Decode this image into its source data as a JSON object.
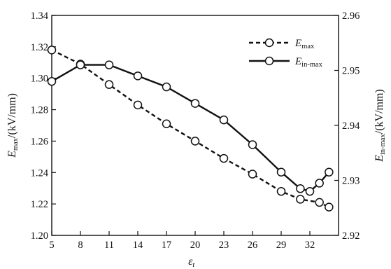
{
  "chart_data": {
    "type": "line",
    "x_axis": {
      "symbol": "ε",
      "subscript": "r",
      "range": [
        5,
        35
      ],
      "ticks": [
        5,
        8,
        11,
        14,
        17,
        20,
        23,
        26,
        29,
        32
      ],
      "tick_labels": [
        "5",
        "8",
        "11",
        "14",
        "17",
        "20",
        "23",
        "26",
        "29",
        "32"
      ]
    },
    "y_axis_left": {
      "symbol": "E",
      "subscript": "max",
      "unit": "/(kV/mm)",
      "range": [
        1.2,
        1.34
      ],
      "ticks": [
        1.2,
        1.22,
        1.24,
        1.26,
        1.28,
        1.3,
        1.32,
        1.34
      ],
      "tick_labels": [
        "1.20",
        "1.22",
        "1.24",
        "1.26",
        "1.28",
        "1.30",
        "1.32",
        "1.34"
      ]
    },
    "y_axis_right": {
      "symbol": "E",
      "subscript": "in-max",
      "unit": "/(kV/mm)",
      "range": [
        2.92,
        2.96
      ],
      "ticks": [
        2.92,
        2.93,
        2.94,
        2.95,
        2.96
      ],
      "tick_labels": [
        "2.92",
        "2.93",
        "2.94",
        "2.95",
        "2.96"
      ]
    },
    "series": [
      {
        "name": "E",
        "name_subscript": "max",
        "axis": "left",
        "line_style": "dashed",
        "marker": "open-circle",
        "x": [
          5,
          8,
          11,
          14,
          17,
          20,
          23,
          26,
          29,
          31,
          33,
          34
        ],
        "y": [
          1.318,
          1.309,
          1.296,
          1.283,
          1.271,
          1.26,
          1.249,
          1.239,
          1.228,
          1.223,
          1.221,
          1.218
        ]
      },
      {
        "name": "E",
        "name_subscript": "in-max",
        "axis": "right",
        "line_style": "solid",
        "marker": "open-circle",
        "x": [
          5,
          8,
          11,
          14,
          17,
          20,
          23,
          26,
          29,
          31,
          32,
          33,
          34
        ],
        "y": [
          2.948,
          2.951,
          2.951,
          2.949,
          2.947,
          2.944,
          2.941,
          2.9365,
          2.9315,
          2.9285,
          2.928,
          2.9295,
          2.9315
        ]
      }
    ],
    "legend_position": "top-right",
    "grid": false
  }
}
